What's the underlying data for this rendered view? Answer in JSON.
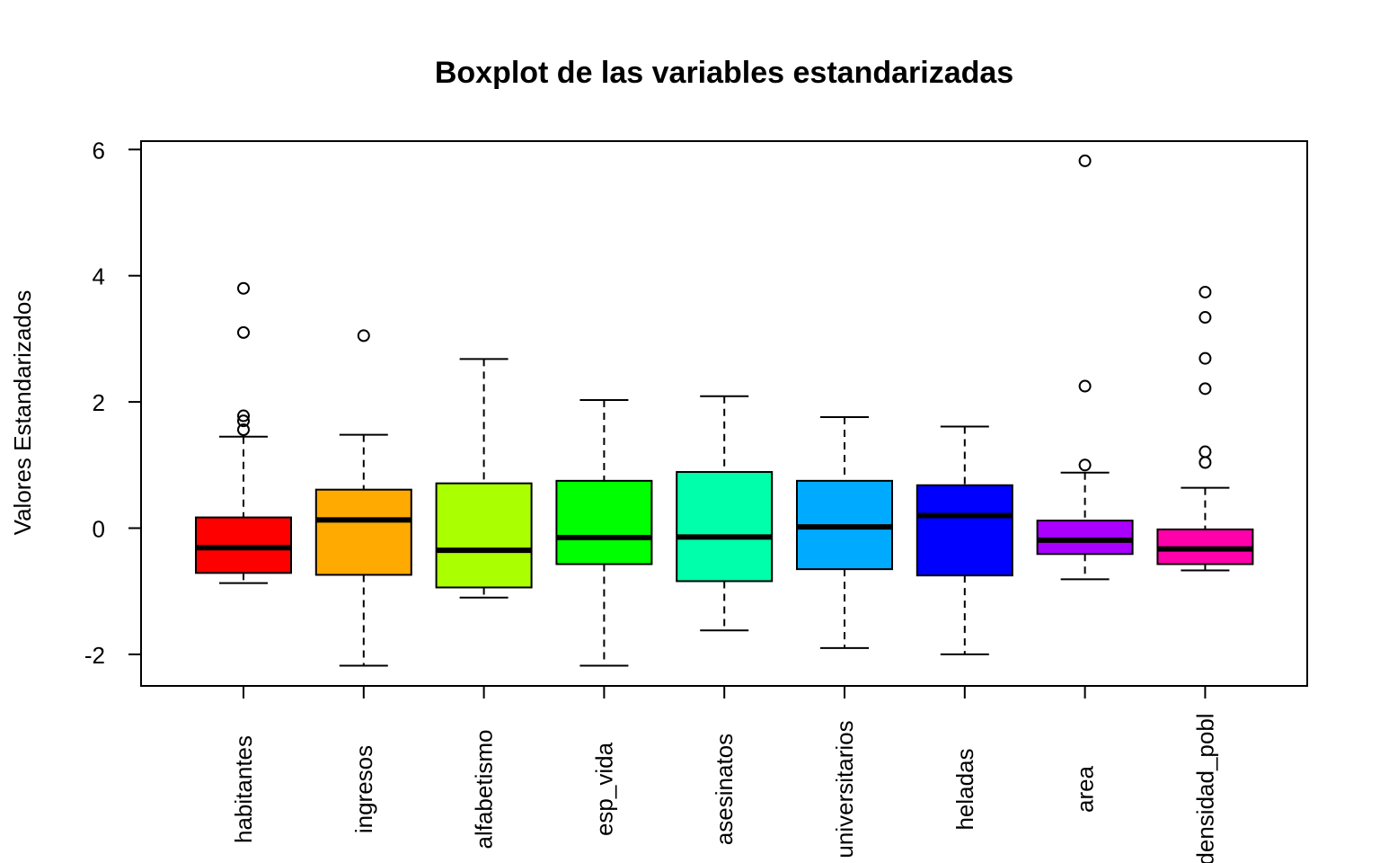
{
  "chart_data": {
    "type": "boxplot",
    "title": "Boxplot de las variables estandarizadas",
    "xlabel": "",
    "ylabel": "Valores Estandarizados",
    "ylim": [
      -2.5,
      6.2
    ],
    "yticks": [
      -2,
      0,
      2,
      4,
      6
    ],
    "grid": false,
    "legend": "none",
    "categories": [
      "habitantes",
      "ingresos",
      "alfabetismo",
      "esp_vida",
      "asesinatos",
      "universitarios",
      "heladas",
      "area",
      "densidad_pobl"
    ],
    "series": [
      {
        "whisker_low": -0.87,
        "q1": -0.71,
        "median": -0.31,
        "q3": 0.17,
        "whisker_high": 1.45,
        "outliers": [
          1.56,
          1.7,
          1.78,
          3.1,
          3.8
        ],
        "color": "#FF0000"
      },
      {
        "whisker_low": -2.18,
        "q1": -0.74,
        "median": 0.13,
        "q3": 0.61,
        "whisker_high": 1.48,
        "outliers": [
          3.05
        ],
        "color": "#FFAA00"
      },
      {
        "whisker_low": -1.1,
        "q1": -0.94,
        "median": -0.35,
        "q3": 0.71,
        "whisker_high": 2.68,
        "outliers": [],
        "color": "#AAFF00"
      },
      {
        "whisker_low": -2.18,
        "q1": -0.57,
        "median": -0.15,
        "q3": 0.75,
        "whisker_high": 2.03,
        "outliers": [],
        "color": "#00FF00"
      },
      {
        "whisker_low": -1.62,
        "q1": -0.84,
        "median": -0.14,
        "q3": 0.89,
        "whisker_high": 2.09,
        "outliers": [],
        "color": "#00FFAA"
      },
      {
        "whisker_low": -1.9,
        "q1": -0.65,
        "median": 0.02,
        "q3": 0.75,
        "whisker_high": 1.76,
        "outliers": [],
        "color": "#00AAFF"
      },
      {
        "whisker_low": -2.0,
        "q1": -0.75,
        "median": 0.2,
        "q3": 0.68,
        "whisker_high": 1.61,
        "outliers": [],
        "color": "#0000FF"
      },
      {
        "whisker_low": -0.81,
        "q1": -0.41,
        "median": -0.19,
        "q3": 0.12,
        "whisker_high": 0.88,
        "outliers": [
          1.0,
          2.25,
          5.82
        ],
        "color": "#AA00FF"
      },
      {
        "whisker_low": -0.67,
        "q1": -0.57,
        "median": -0.33,
        "q3": -0.02,
        "whisker_high": 0.64,
        "outliers": [
          1.04,
          1.21,
          2.21,
          2.69,
          3.34,
          3.74
        ],
        "color": "#FF00AA"
      }
    ]
  }
}
